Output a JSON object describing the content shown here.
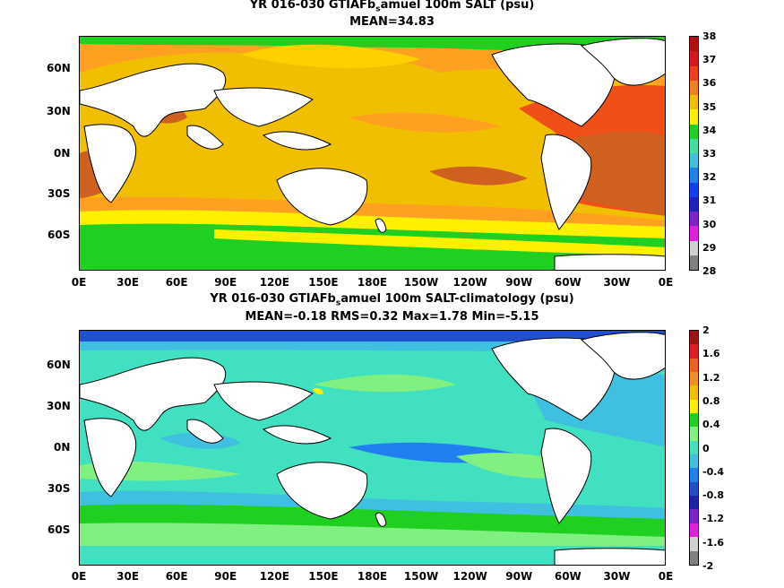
{
  "panel1": {
    "title_prefix": "YR 016-030 GTIAFb",
    "title_sub": "s",
    "title_suffix": "amuel 100m SALT (psu)",
    "mean_text": "MEAN=34.83",
    "colorbar_ticks": [
      "38",
      "37",
      "36",
      "35",
      "34",
      "33",
      "32",
      "31",
      "30",
      "29",
      "28"
    ],
    "colorbar_colors": [
      "#b01010",
      "#d81818",
      "#f04020",
      "#f08020",
      "#f0c000",
      "#fff000",
      "#20d020",
      "#40e0a0",
      "#40c0e0",
      "#2080f0",
      "#1040f0",
      "#2020c0",
      "#8020d0",
      "#e020e0",
      "#d0d0d0",
      "#808080"
    ]
  },
  "panel2": {
    "title_prefix": "YR 016-030 GTIAFb",
    "title_sub": "s",
    "title_suffix": "amuel 100m SALT-climatology (psu)",
    "stats_text": "MEAN=-0.18   RMS=0.32   Max=1.78   Min=-5.15",
    "colorbar_ticks": [
      "2",
      "1.6",
      "1.2",
      "0.8",
      "0.4",
      "0",
      "-0.4",
      "-0.8",
      "-1.2",
      "-1.6",
      "-2"
    ],
    "colorbar_colors": [
      "#a01010",
      "#e02020",
      "#f06020",
      "#f09020",
      "#f0c000",
      "#fff000",
      "#20d020",
      "#80f080",
      "#40e0c0",
      "#40c0e0",
      "#2080f0",
      "#2050d0",
      "#2020b0",
      "#8020d0",
      "#e020e0",
      "#d0d0d0",
      "#808080"
    ]
  },
  "lat_labels": [
    "60N",
    "30N",
    "0N",
    "30S",
    "60S"
  ],
  "lon_labels": [
    "0E",
    "30E",
    "60E",
    "90E",
    "120E",
    "150E",
    "180E",
    "150W",
    "120W",
    "90W",
    "60W",
    "30W",
    "0E"
  ],
  "colors": {
    "land": "#ffffff",
    "coast": "#000000"
  }
}
